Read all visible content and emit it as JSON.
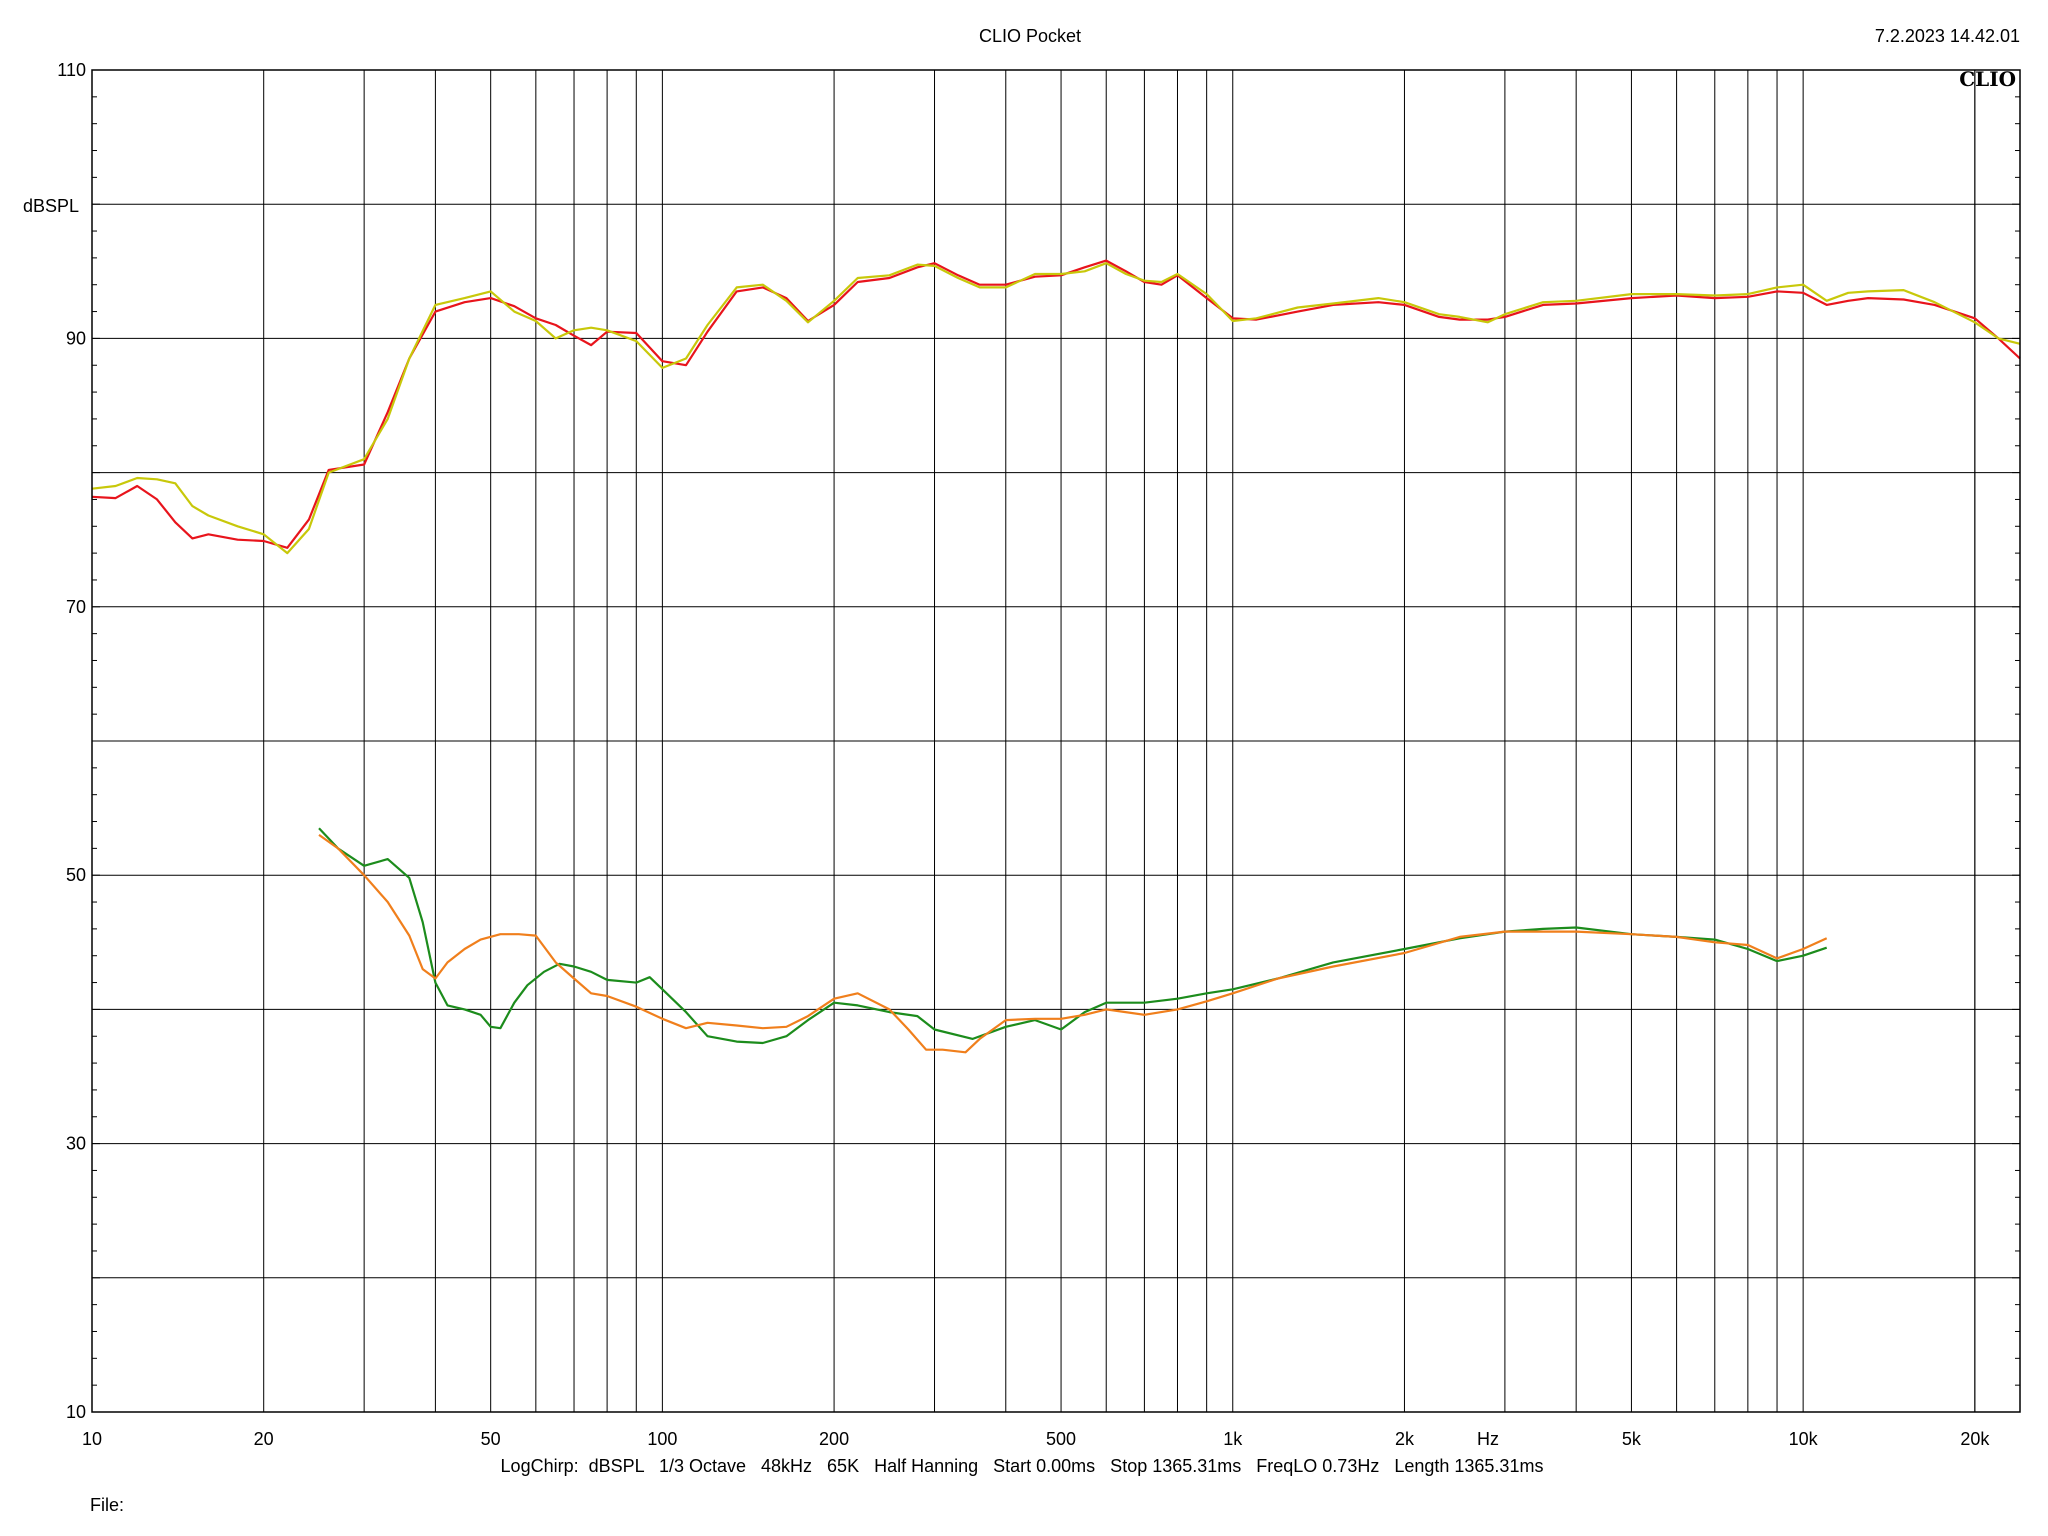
{
  "header": {
    "title": "CLIO Pocket",
    "timestamp": "7.2.2023 14.42.01",
    "logo": "CLIO"
  },
  "footer": {
    "settings": "LogChirp:  dBSPL   1/3 Octave   48kHz   65K   Half Hanning   Start 0.00ms   Stop 1365.31ms   FreqLO 0.73Hz   Length 1365.31ms",
    "file_label": "File:"
  },
  "chart_data": {
    "type": "line",
    "title": "CLIO Pocket",
    "xlabel": "Hz",
    "ylabel": "dBSPL",
    "xscale": "log",
    "xlim": [
      10,
      24000
    ],
    "ylim": [
      10,
      110
    ],
    "grid": true,
    "y_ticks": [
      {
        "value": 110,
        "label": "110"
      },
      {
        "value": 90,
        "label": "90"
      },
      {
        "value": 70,
        "label": "70"
      },
      {
        "value": 50,
        "label": "50"
      },
      {
        "value": 30,
        "label": "30"
      },
      {
        "value": 10,
        "label": "10"
      }
    ],
    "x_ticks": [
      {
        "value": 10,
        "label": "10"
      },
      {
        "value": 20,
        "label": "20"
      },
      {
        "value": 50,
        "label": "50"
      },
      {
        "value": 100,
        "label": "100"
      },
      {
        "value": 200,
        "label": "200"
      },
      {
        "value": 500,
        "label": "500"
      },
      {
        "value": 1000,
        "label": "1k"
      },
      {
        "value": 2000,
        "label": "2k"
      },
      {
        "value": 5000,
        "label": "5k"
      },
      {
        "value": 10000,
        "label": "10k"
      },
      {
        "value": 20000,
        "label": "20k"
      }
    ],
    "series": [
      {
        "color": "#e8141c",
        "x": [
          10,
          11,
          12,
          13,
          14,
          15,
          16,
          18,
          20,
          22,
          24,
          26,
          30,
          33,
          36,
          40,
          45,
          50,
          55,
          60,
          65,
          70,
          75,
          80,
          90,
          100,
          110,
          120,
          135,
          150,
          165,
          180,
          200,
          220,
          250,
          280,
          300,
          330,
          360,
          400,
          450,
          500,
          550,
          600,
          650,
          700,
          750,
          800,
          900,
          1000,
          1100,
          1300,
          1500,
          1800,
          2000,
          2300,
          2500,
          2800,
          3000,
          3500,
          4000,
          5000,
          6000,
          7000,
          8000,
          9000,
          10000,
          11000,
          12000,
          13000,
          15000,
          17000,
          20000,
          22000,
          24000
        ],
        "y": [
          78.2,
          78.1,
          79.0,
          78.0,
          76.3,
          75.1,
          75.4,
          75.0,
          74.9,
          74.4,
          76.5,
          80.2,
          80.6,
          84.5,
          88.5,
          92.0,
          92.7,
          93.0,
          92.4,
          91.5,
          91.0,
          90.2,
          89.5,
          90.5,
          90.4,
          88.3,
          88.0,
          90.5,
          93.5,
          93.8,
          93.0,
          91.3,
          92.5,
          94.2,
          94.5,
          95.3,
          95.6,
          94.7,
          94.0,
          94.0,
          94.6,
          94.7,
          95.3,
          95.8,
          95.0,
          94.2,
          94.0,
          94.7,
          93.0,
          91.5,
          91.4,
          92.0,
          92.5,
          92.7,
          92.5,
          91.6,
          91.4,
          91.4,
          91.6,
          92.5,
          92.6,
          93.0,
          93.2,
          93.0,
          93.1,
          93.5,
          93.4,
          92.5,
          92.8,
          93.0,
          92.9,
          92.5,
          91.5,
          90.0,
          88.5
        ]
      },
      {
        "color": "#c8c80a",
        "x": [
          10,
          11,
          12,
          13,
          14,
          15,
          16,
          18,
          20,
          22,
          24,
          26,
          30,
          33,
          36,
          40,
          45,
          50,
          55,
          60,
          65,
          70,
          75,
          80,
          90,
          100,
          110,
          120,
          135,
          150,
          165,
          180,
          200,
          220,
          250,
          280,
          300,
          330,
          360,
          400,
          450,
          500,
          550,
          600,
          650,
          700,
          750,
          800,
          900,
          1000,
          1100,
          1300,
          1500,
          1800,
          2000,
          2300,
          2500,
          2800,
          3000,
          3500,
          4000,
          5000,
          6000,
          7000,
          8000,
          9000,
          10000,
          11000,
          12000,
          13000,
          15000,
          17000,
          20000,
          22000,
          24000
        ],
        "y": [
          78.8,
          79.0,
          79.6,
          79.5,
          79.2,
          77.5,
          76.8,
          76.0,
          75.4,
          74.0,
          75.8,
          80.0,
          81.0,
          84.0,
          88.5,
          92.5,
          93.0,
          93.5,
          92.0,
          91.3,
          90.0,
          90.6,
          90.8,
          90.6,
          89.8,
          87.8,
          88.5,
          91.0,
          93.8,
          94.0,
          92.8,
          91.2,
          92.8,
          94.5,
          94.7,
          95.5,
          95.4,
          94.5,
          93.8,
          93.8,
          94.8,
          94.8,
          95.0,
          95.6,
          94.8,
          94.3,
          94.2,
          94.8,
          93.3,
          91.3,
          91.5,
          92.3,
          92.6,
          93.0,
          92.7,
          91.8,
          91.6,
          91.2,
          91.8,
          92.7,
          92.8,
          93.3,
          93.3,
          93.2,
          93.3,
          93.8,
          94.0,
          92.8,
          93.4,
          93.5,
          93.6,
          92.7,
          91.2,
          90.0,
          89.6
        ]
      },
      {
        "color": "#1c8c1c",
        "x": [
          25,
          27,
          30,
          33,
          36,
          38,
          40,
          42,
          45,
          48,
          50,
          52,
          55,
          58,
          62,
          66,
          70,
          75,
          80,
          90,
          95,
          100,
          110,
          120,
          135,
          150,
          165,
          180,
          200,
          220,
          250,
          280,
          300,
          350,
          400,
          450,
          500,
          550,
          600,
          700,
          800,
          900,
          1000,
          1200,
          1500,
          2000,
          2500,
          3000,
          3500,
          4000,
          5000,
          6000,
          7000,
          8000,
          9000,
          10000,
          11000
        ],
        "y": [
          53.5,
          52.0,
          50.7,
          51.2,
          49.8,
          46.5,
          42.0,
          40.3,
          40.0,
          39.6,
          38.7,
          38.6,
          40.5,
          41.8,
          42.8,
          43.4,
          43.2,
          42.8,
          42.2,
          42.0,
          42.4,
          41.5,
          39.8,
          38.0,
          37.6,
          37.5,
          38.0,
          39.2,
          40.5,
          40.3,
          39.8,
          39.5,
          38.5,
          37.8,
          38.7,
          39.2,
          38.5,
          39.8,
          40.5,
          40.5,
          40.8,
          41.2,
          41.5,
          42.3,
          43.5,
          44.5,
          45.3,
          45.8,
          46.0,
          46.1,
          45.6,
          45.4,
          45.2,
          44.5,
          43.6,
          44.0,
          44.6
        ]
      },
      {
        "color": "#f07f1c",
        "x": [
          25,
          27,
          30,
          33,
          36,
          38,
          40,
          42,
          45,
          48,
          52,
          56,
          60,
          65,
          70,
          75,
          80,
          90,
          100,
          110,
          120,
          135,
          150,
          165,
          180,
          200,
          220,
          250,
          270,
          290,
          310,
          340,
          360,
          400,
          450,
          500,
          550,
          600,
          700,
          800,
          900,
          1000,
          1200,
          1500,
          2000,
          2500,
          3000,
          3500,
          4000,
          5000,
          6000,
          7000,
          8000,
          9000,
          10000,
          11000
        ],
        "y": [
          53.0,
          52.0,
          50.0,
          48.0,
          45.5,
          43.0,
          42.3,
          43.5,
          44.5,
          45.2,
          45.6,
          45.6,
          45.5,
          43.5,
          42.3,
          41.2,
          41.0,
          40.2,
          39.3,
          38.6,
          39.0,
          38.8,
          38.6,
          38.7,
          39.5,
          40.8,
          41.2,
          40.0,
          38.5,
          37.0,
          37.0,
          36.8,
          37.8,
          39.2,
          39.3,
          39.3,
          39.6,
          40.0,
          39.6,
          40.0,
          40.6,
          41.2,
          42.3,
          43.2,
          44.2,
          45.4,
          45.8,
          45.8,
          45.8,
          45.6,
          45.4,
          45.0,
          44.8,
          43.8,
          44.5,
          45.3
        ]
      }
    ]
  }
}
